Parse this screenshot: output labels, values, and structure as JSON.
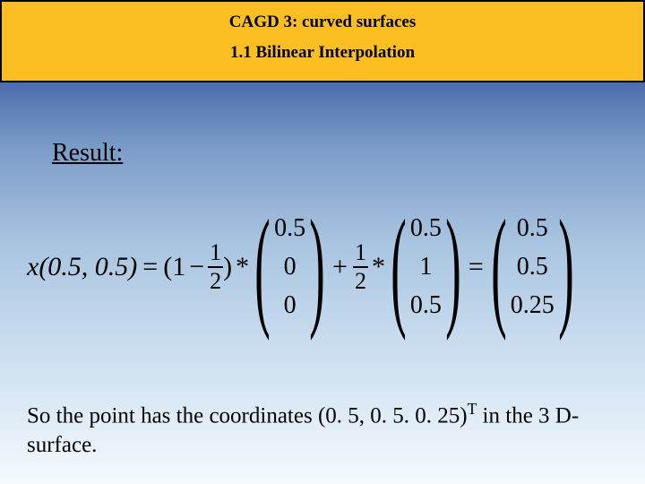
{
  "header": {
    "title": "CAGD 3:  curved surfaces",
    "subtitle": "1.1 Bilinear Interpolation",
    "bg_color": "#fbbf24",
    "border_color": "#000000"
  },
  "background": {
    "gradient_top": "#1a2a7a",
    "gradient_bottom": "#f5fafd"
  },
  "result_label": "Result:",
  "equation": {
    "lhs": "x(0.5, 0.5)",
    "term1": {
      "scalar_open": "(",
      "one": "1",
      "minus": "−",
      "frac_num": "1",
      "frac_den": "2",
      "scalar_close": ")",
      "times": "*",
      "vec": [
        "0.5",
        "0",
        "0"
      ]
    },
    "plus": "+",
    "term2": {
      "frac_num": "1",
      "frac_den": "2",
      "times": "*",
      "vec": [
        "0.5",
        "1",
        "0.5"
      ]
    },
    "eq": "=",
    "result_vec": [
      "0.5",
      "0.5",
      "0.25"
    ]
  },
  "conclusion": {
    "prefix": "So the point has the coordinates (0. 5, 0. 5. 0. 25)",
    "sup": "T",
    "suffix": " in the 3 D-surface."
  },
  "typography": {
    "font_family": "Times New Roman",
    "title_fontsize_pt": 14,
    "body_fontsize_pt": 20,
    "equation_fontsize_pt": 24
  }
}
